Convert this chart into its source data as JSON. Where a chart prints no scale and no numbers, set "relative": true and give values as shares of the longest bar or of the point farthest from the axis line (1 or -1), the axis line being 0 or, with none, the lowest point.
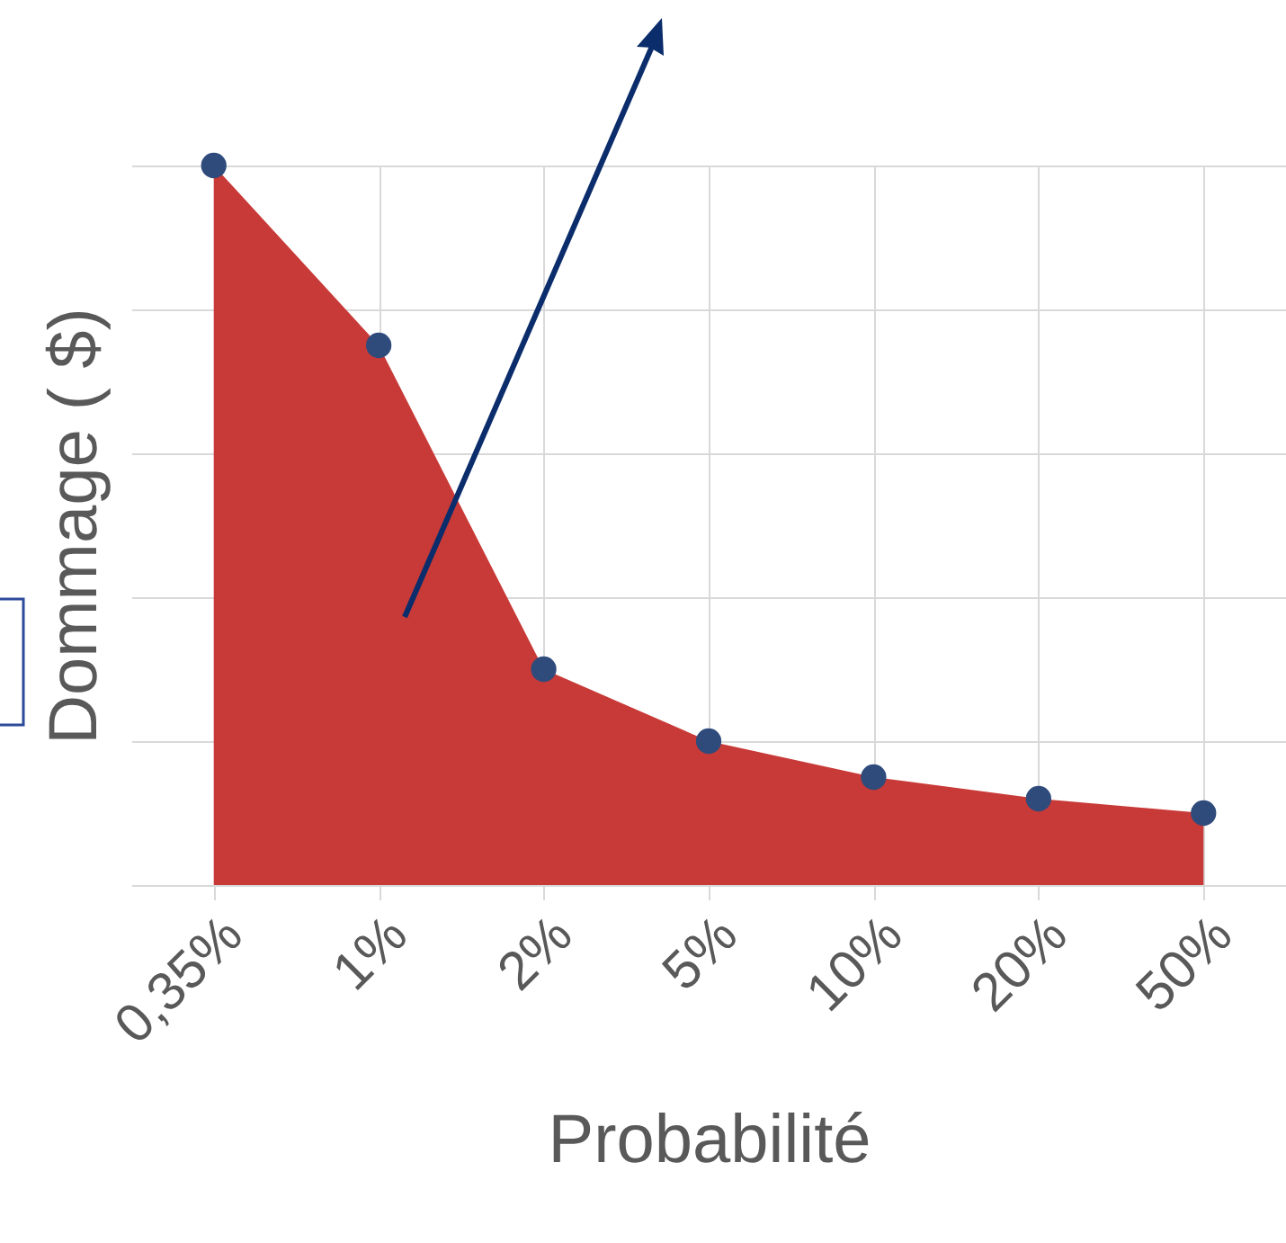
{
  "chart_data": {
    "type": "area",
    "xlabel": "Probabilité",
    "ylabel": "Dommage ( $)",
    "relative": true,
    "grid": true,
    "marker": "circle",
    "categories": [
      "0,35%",
      "1%",
      "2%",
      "5%",
      "10%",
      "20%",
      "50%"
    ],
    "series": [
      {
        "color": "#c83a37",
        "values": [
          1,
          0.75,
          0.3,
          0.2,
          0.15,
          0.12,
          0.1
        ]
      }
    ]
  }
}
